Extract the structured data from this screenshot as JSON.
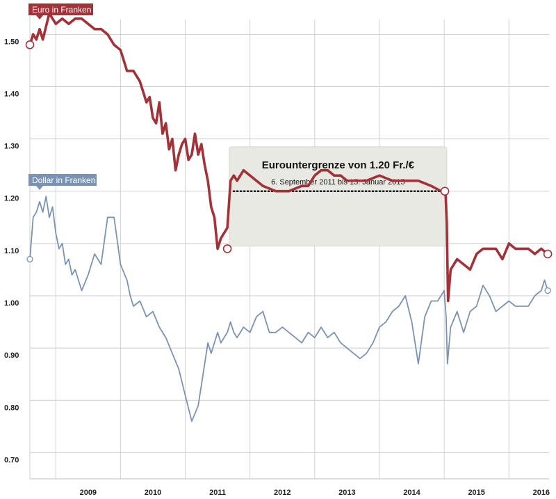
{
  "chart_data": {
    "type": "line",
    "ylim": [
      0.65,
      1.555
    ],
    "xlim": [
      2008.6,
      2016.62
    ],
    "yticks": [
      "0.70",
      "0.80",
      "0.90",
      "1.00",
      "1.10",
      "1.20",
      "1.30",
      "1.40",
      "1.50"
    ],
    "xticks": [
      "2009",
      "2010",
      "2011",
      "2012",
      "2013",
      "2014",
      "2015",
      "2016"
    ],
    "annotation": {
      "title": "Eurountergrenze von 1.20 Fr./€",
      "subtitle": "6. September 2011 bis 15. Januar 2015",
      "x_start": 2011.68,
      "x_end": 2015.04,
      "y_top": 1.285,
      "y_bottom": 1.095,
      "floor": 1.2
    },
    "series": [
      {
        "name": "Euro in Franken",
        "color": "#a33138",
        "x": [
          2008.6,
          2008.65,
          2008.7,
          2008.75,
          2008.8,
          2008.9,
          2009.0,
          2009.1,
          2009.2,
          2009.3,
          2009.4,
          2009.5,
          2009.6,
          2009.7,
          2009.8,
          2009.9,
          2010.0,
          2010.05,
          2010.1,
          2010.2,
          2010.3,
          2010.4,
          2010.45,
          2010.5,
          2010.55,
          2010.6,
          2010.65,
          2010.7,
          2010.75,
          2010.8,
          2010.85,
          2010.9,
          2010.95,
          2011.0,
          2011.05,
          2011.1,
          2011.15,
          2011.2,
          2011.25,
          2011.3,
          2011.35,
          2011.4,
          2011.45,
          2011.5,
          2011.55,
          2011.6,
          2011.65,
          2011.7,
          2011.75,
          2011.8,
          2011.9,
          2012.0,
          2012.2,
          2012.4,
          2012.6,
          2012.8,
          2012.9,
          2013.0,
          2013.1,
          2013.2,
          2013.3,
          2013.4,
          2013.5,
          2013.6,
          2013.8,
          2014.0,
          2014.2,
          2014.4,
          2014.6,
          2014.8,
          2014.95,
          2015.02,
          2015.04,
          2015.06,
          2015.1,
          2015.2,
          2015.3,
          2015.4,
          2015.5,
          2015.6,
          2015.7,
          2015.8,
          2015.9,
          2016.0,
          2016.1,
          2016.2,
          2016.3,
          2016.4,
          2016.5,
          2016.6
        ],
        "values": [
          1.48,
          1.5,
          1.49,
          1.51,
          1.49,
          1.54,
          1.52,
          1.53,
          1.52,
          1.53,
          1.53,
          1.52,
          1.51,
          1.51,
          1.5,
          1.48,
          1.47,
          1.45,
          1.43,
          1.43,
          1.41,
          1.37,
          1.38,
          1.34,
          1.33,
          1.37,
          1.31,
          1.33,
          1.28,
          1.3,
          1.24,
          1.27,
          1.29,
          1.3,
          1.26,
          1.27,
          1.31,
          1.27,
          1.29,
          1.25,
          1.22,
          1.17,
          1.15,
          1.09,
          1.11,
          1.12,
          1.13,
          1.22,
          1.23,
          1.22,
          1.24,
          1.23,
          1.21,
          1.2,
          1.2,
          1.21,
          1.21,
          1.23,
          1.24,
          1.24,
          1.23,
          1.23,
          1.22,
          1.22,
          1.22,
          1.23,
          1.22,
          1.22,
          1.22,
          1.21,
          1.2,
          1.2,
          1.14,
          0.99,
          1.05,
          1.07,
          1.06,
          1.05,
          1.08,
          1.09,
          1.09,
          1.09,
          1.07,
          1.1,
          1.09,
          1.09,
          1.09,
          1.08,
          1.09,
          1.08
        ]
      },
      {
        "name": "Dollar in Franken",
        "color": "#7b93b2",
        "x": [
          2008.6,
          2008.65,
          2008.7,
          2008.75,
          2008.8,
          2008.85,
          2008.9,
          2008.95,
          2009.0,
          2009.05,
          2009.1,
          2009.15,
          2009.2,
          2009.25,
          2009.3,
          2009.4,
          2009.5,
          2009.6,
          2009.7,
          2009.8,
          2009.9,
          2010.0,
          2010.1,
          2010.15,
          2010.2,
          2010.3,
          2010.4,
          2010.5,
          2010.6,
          2010.7,
          2010.8,
          2010.9,
          2011.0,
          2011.1,
          2011.2,
          2011.3,
          2011.35,
          2011.4,
          2011.45,
          2011.5,
          2011.55,
          2011.6,
          2011.65,
          2011.7,
          2011.75,
          2011.8,
          2011.9,
          2012.0,
          2012.1,
          2012.2,
          2012.3,
          2012.4,
          2012.5,
          2012.6,
          2012.7,
          2012.8,
          2012.9,
          2013.0,
          2013.1,
          2013.2,
          2013.3,
          2013.4,
          2013.5,
          2013.6,
          2013.7,
          2013.8,
          2013.9,
          2014.0,
          2014.1,
          2014.2,
          2014.3,
          2014.4,
          2014.5,
          2014.6,
          2014.7,
          2014.8,
          2014.9,
          2015.0,
          2015.03,
          2015.05,
          2015.1,
          2015.2,
          2015.3,
          2015.4,
          2015.5,
          2015.6,
          2015.7,
          2015.8,
          2015.9,
          2016.0,
          2016.1,
          2016.2,
          2016.3,
          2016.4,
          2016.5,
          2016.55,
          2016.6
        ],
        "values": [
          1.07,
          1.15,
          1.16,
          1.18,
          1.16,
          1.19,
          1.15,
          1.17,
          1.12,
          1.09,
          1.1,
          1.06,
          1.07,
          1.04,
          1.05,
          1.01,
          1.04,
          1.08,
          1.06,
          1.15,
          1.15,
          1.06,
          1.03,
          1.0,
          0.98,
          0.99,
          0.96,
          0.97,
          0.94,
          0.92,
          0.89,
          0.86,
          0.81,
          0.76,
          0.79,
          0.87,
          0.91,
          0.89,
          0.91,
          0.93,
          0.91,
          0.92,
          0.93,
          0.95,
          0.93,
          0.92,
          0.94,
          0.93,
          0.96,
          0.97,
          0.93,
          0.93,
          0.94,
          0.93,
          0.92,
          0.91,
          0.93,
          0.92,
          0.94,
          0.92,
          0.93,
          0.91,
          0.9,
          0.89,
          0.88,
          0.89,
          0.91,
          0.94,
          0.95,
          0.97,
          0.98,
          1.0,
          0.95,
          0.87,
          0.96,
          0.99,
          0.99,
          1.01,
          0.96,
          0.87,
          0.94,
          0.97,
          0.93,
          0.97,
          0.98,
          1.02,
          1.0,
          0.97,
          0.98,
          0.99,
          0.98,
          0.98,
          0.98,
          1.0,
          1.01,
          1.03,
          1.01
        ]
      }
    ]
  }
}
